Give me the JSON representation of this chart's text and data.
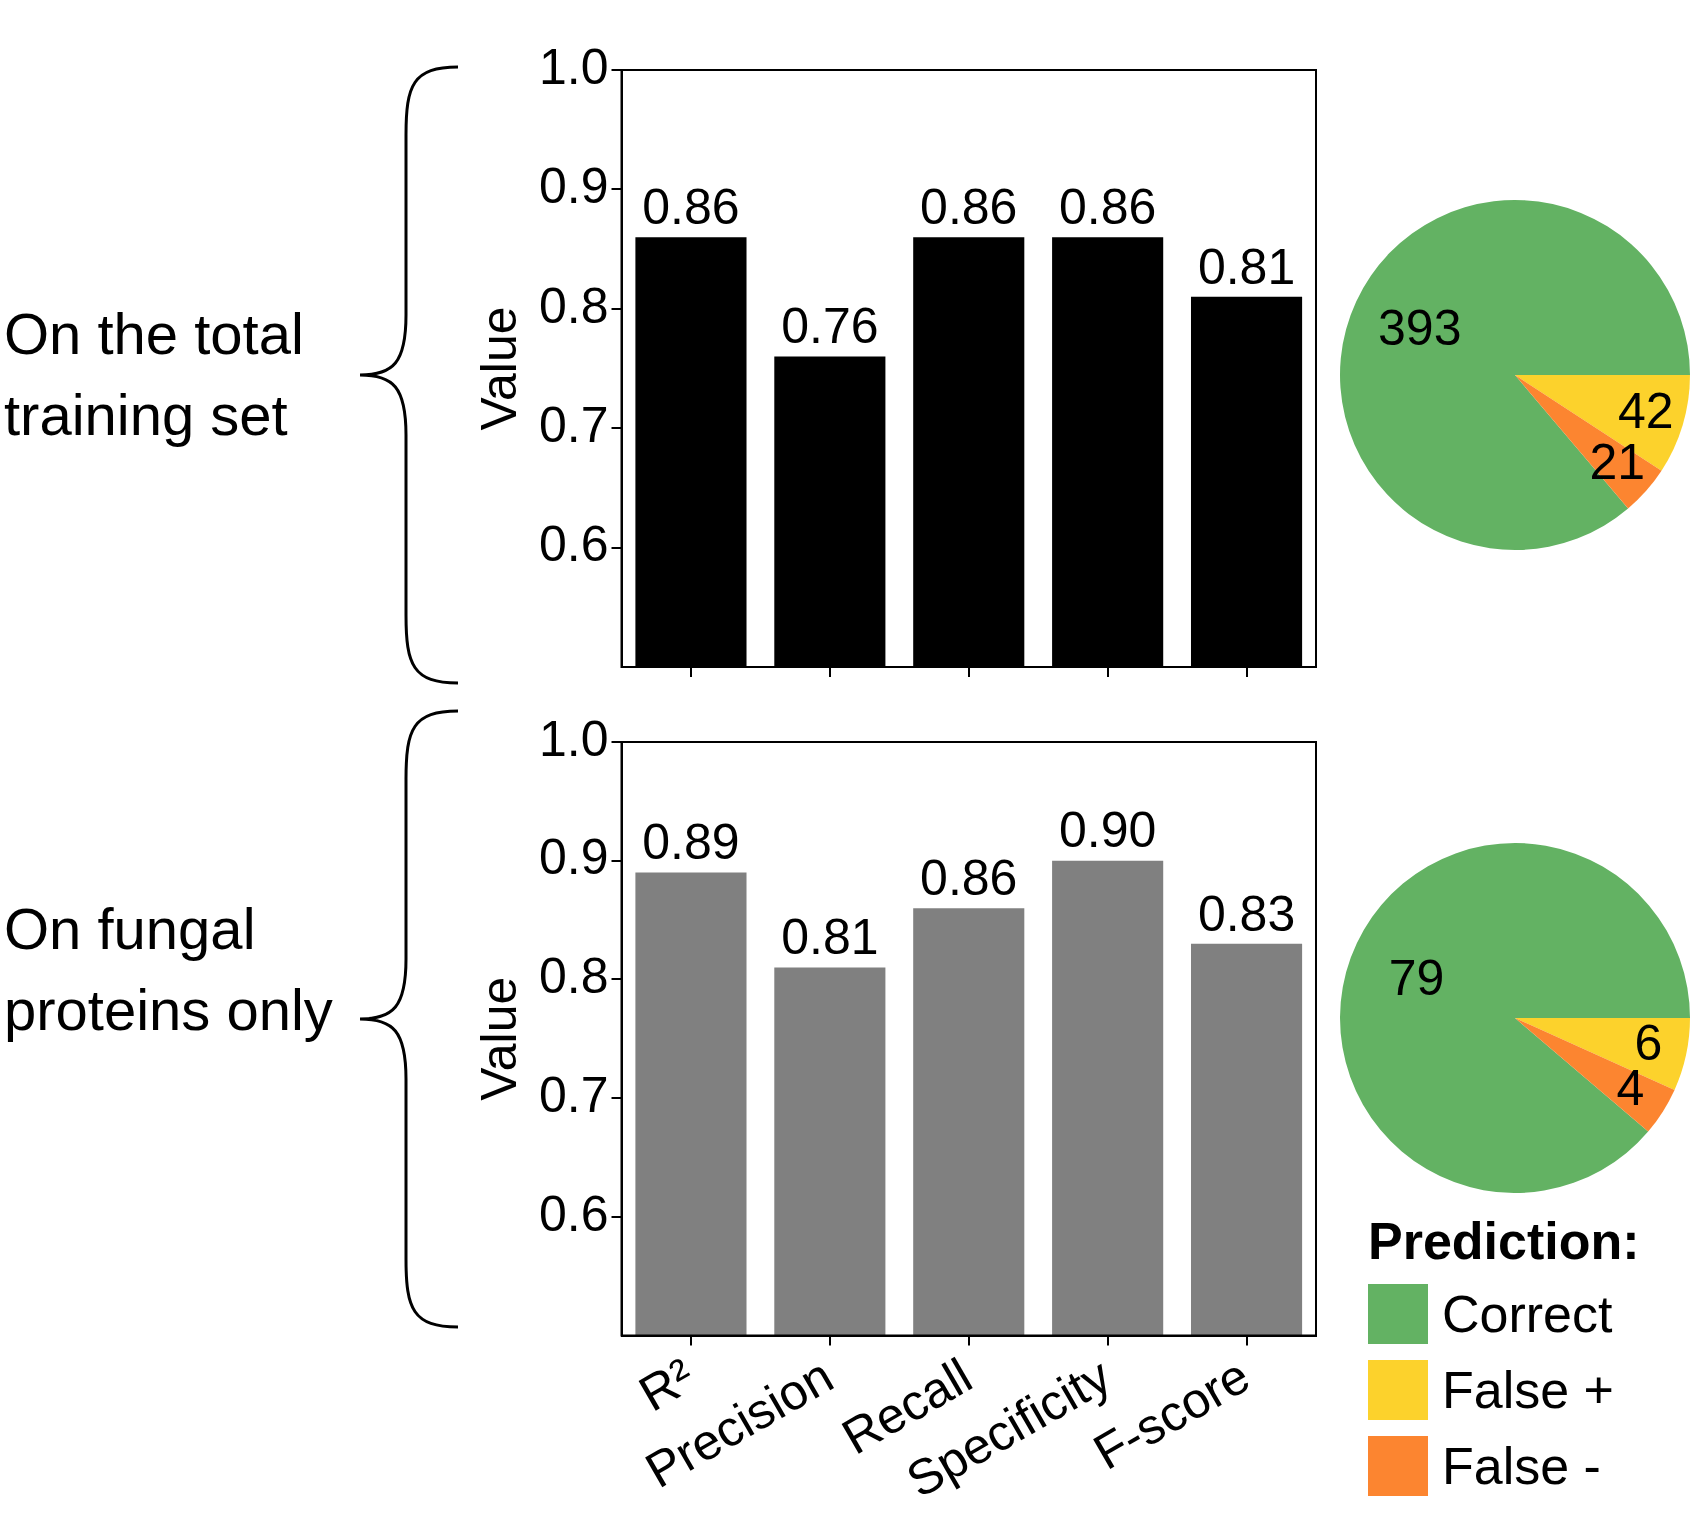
{
  "chart_data": [
    {
      "type": "bar",
      "annotations": [
        "On the total training set"
      ],
      "categories": [
        null,
        null,
        null,
        null,
        null
      ],
      "values": [
        0.86,
        0.76,
        0.86,
        0.86,
        0.81
      ],
      "value_labels": [
        "0.86",
        "0.76",
        "0.86",
        "0.86",
        "0.81"
      ],
      "color": "#000000",
      "ylabel": "Value",
      "ylim": [
        0.5,
        1.0
      ],
      "yticks": [
        0.6,
        0.7,
        0.8,
        0.9,
        {
          "value": 1,
          "label": "1.0"
        }
      ],
      "tick_labels": "y"
    },
    {
      "type": "pie",
      "categories": [
        null,
        null,
        null
      ],
      "values": [
        393,
        42,
        21
      ],
      "colors": [
        "#63b263",
        "#fcd22c",
        "#fc8530"
      ],
      "data_labels": true
    },
    {
      "type": "bar",
      "annotations": [
        "On fungal proteins only"
      ],
      "categories": [
        "R²",
        "Precision",
        "Recall",
        "Specificity",
        "F-score"
      ],
      "values": [
        0.89,
        0.81,
        0.86,
        0.9,
        0.83
      ],
      "value_labels": [
        "0.89",
        "0.81",
        "0.86",
        "0.90",
        "0.83"
      ],
      "color": "#808080",
      "ylabel": "Value",
      "ylim": [
        0.5,
        1.0
      ],
      "yticks": [
        0.6,
        0.7,
        0.8,
        0.9,
        {
          "value": 1,
          "label": "1.0"
        }
      ]
    },
    {
      "type": "pie",
      "categories": [
        "Correct",
        "False +",
        "False -"
      ],
      "values": [
        79,
        6,
        4
      ],
      "colors": [
        "#63b263",
        "#fcd22c",
        "#fc8530"
      ],
      "data_labels": true,
      "legend": "bottom",
      "legend_title": "Prediction:"
    }
  ]
}
